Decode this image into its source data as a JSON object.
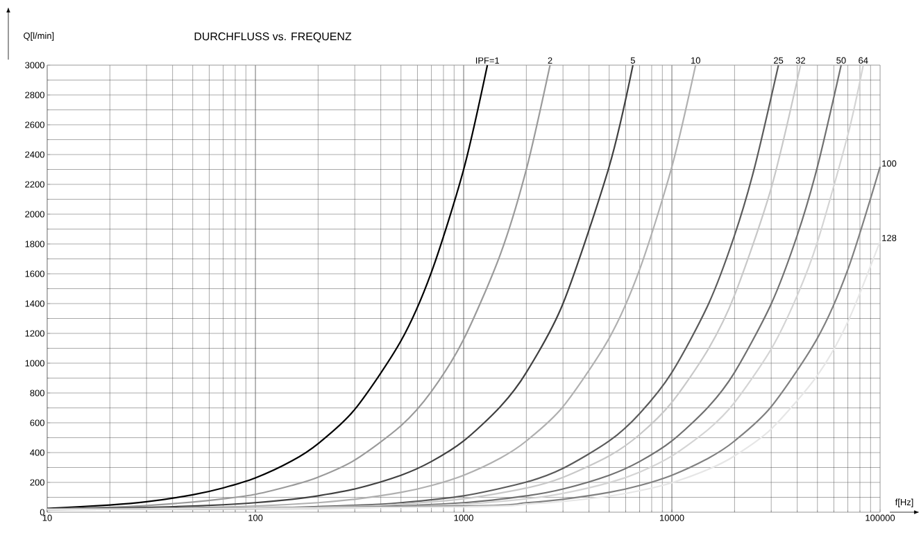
{
  "chart_data": {
    "type": "line",
    "title": "DURCHFLUSS vs. FREQUENZ",
    "xlabel": "f[Hz]",
    "ylabel": "Q[l/min]",
    "log": "x",
    "grid": true,
    "xlim": [
      10,
      100000
    ],
    "ylim": [
      0,
      3000
    ],
    "xticks": [
      10,
      100,
      1000,
      10000,
      100000
    ],
    "yticks": [
      0,
      200,
      400,
      600,
      800,
      1000,
      1200,
      1400,
      1600,
      1800,
      2000,
      2200,
      2400,
      2600,
      2800,
      3000
    ],
    "series": [
      {
        "name": "IPF=1",
        "color": "#000000",
        "x": [
          10,
          20,
          30,
          50,
          70,
          100,
          150,
          200,
          300,
          500,
          700,
          1000,
          1300
        ],
        "values": [
          25,
          48,
          70,
          117,
          163,
          230,
          345,
          460,
          690,
          1150,
          1610,
          2300,
          3000
        ]
      },
      {
        "name": "2",
        "color": "#9a9a9a",
        "x": [
          10,
          20,
          30,
          50,
          70,
          100,
          150,
          200,
          300,
          500,
          700,
          1000,
          1500,
          2000,
          2600
        ],
        "values": [
          22,
          33,
          45,
          68,
          90,
          120,
          180,
          235,
          350,
          580,
          810,
          1160,
          1730,
          2300,
          3000
        ]
      },
      {
        "name": "5",
        "color": "#404040",
        "x": [
          10,
          20,
          30,
          50,
          70,
          100,
          150,
          200,
          300,
          500,
          700,
          1000,
          1500,
          2000,
          3000,
          5000,
          6500
        ],
        "values": [
          22,
          27,
          32,
          41,
          50,
          64,
          87,
          110,
          156,
          248,
          340,
          478,
          708,
          938,
          1400,
          2320,
          3000
        ]
      },
      {
        "name": "10",
        "color": "#b0b0b0",
        "x": [
          10,
          30,
          50,
          100,
          200,
          300,
          500,
          700,
          1000,
          1500,
          2000,
          3000,
          5000,
          7000,
          10000,
          13000
        ],
        "values": [
          20,
          25,
          30,
          41,
          64,
          87,
          133,
          179,
          248,
          363,
          478,
          708,
          1168,
          1628,
          2318,
          3000
        ]
      },
      {
        "name": "25",
        "color": "#5a5a5a",
        "x": [
          10,
          100,
          300,
          500,
          1000,
          2000,
          3000,
          5000,
          7000,
          10000,
          15000,
          20000,
          25000,
          32500
        ],
        "values": [
          19,
          27,
          46,
          64,
          110,
          202,
          294,
          478,
          662,
          938,
          1398,
          1858,
          2318,
          3000
        ]
      },
      {
        "name": "32",
        "color": "#c8c8c8",
        "x": [
          10,
          100,
          300,
          500,
          1000,
          2000,
          3000,
          5000,
          7000,
          10000,
          15000,
          20000,
          30000,
          41500
        ],
        "values": [
          19,
          25,
          40,
          54,
          90,
          162,
          234,
          378,
          521,
          737,
          1097,
          1456,
          2175,
          3000
        ]
      },
      {
        "name": "50",
        "color": "#707070",
        "x": [
          10,
          100,
          300,
          1000,
          2000,
          3000,
          5000,
          7000,
          10000,
          15000,
          20000,
          30000,
          40000,
          50000,
          65000
        ],
        "values": [
          18,
          23,
          32,
          64,
          110,
          156,
          248,
          340,
          478,
          708,
          938,
          1398,
          1858,
          2318,
          3000
        ]
      },
      {
        "name": "64",
        "color": "#d4d4d4",
        "x": [
          10,
          100,
          300,
          1000,
          2000,
          3000,
          5000,
          7000,
          10000,
          15000,
          20000,
          30000,
          40000,
          50000,
          70000,
          83000
        ],
        "values": [
          18,
          22,
          29,
          54,
          90,
          126,
          198,
          269,
          377,
          557,
          736,
          1095,
          1454,
          1813,
          2531,
          3000
        ]
      },
      {
        "name": "100",
        "color": "#808080",
        "x": [
          10,
          1000,
          2000,
          3000,
          5000,
          7000,
          10000,
          15000,
          20000,
          30000,
          50000,
          70000,
          100000
        ],
        "values": [
          18,
          41,
          64,
          87,
          133,
          179,
          248,
          363,
          478,
          708,
          1168,
          1628,
          2318
        ]
      },
      {
        "name": "128",
        "color": "#e6e6e6",
        "x": [
          10,
          1000,
          2000,
          3000,
          5000,
          7000,
          10000,
          15000,
          20000,
          30000,
          50000,
          70000,
          100000
        ],
        "values": [
          18,
          36,
          54,
          72,
          108,
          144,
          198,
          288,
          378,
          558,
          918,
          1278,
          1818
        ]
      }
    ]
  }
}
